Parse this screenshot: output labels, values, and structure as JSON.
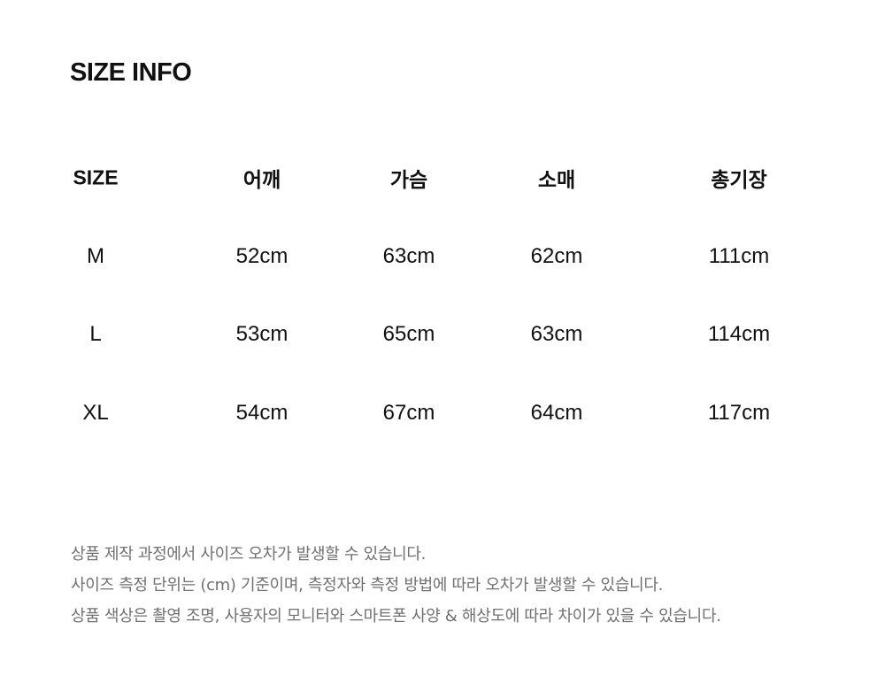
{
  "title": "SIZE INFO",
  "table": {
    "headers": [
      "SIZE",
      "어깨",
      "가슴",
      "소매",
      "총기장"
    ],
    "rows": [
      [
        "M",
        "52cm",
        "63cm",
        "62cm",
        "111cm"
      ],
      [
        "L",
        "53cm",
        "65cm",
        "63cm",
        "114cm"
      ],
      [
        "XL",
        "54cm",
        "67cm",
        "64cm",
        "117cm"
      ]
    ]
  },
  "notes": [
    "상품 제작 과정에서 사이즈 오차가 발생할 수 있습니다.",
    "사이즈 측정 단위는 (cm) 기준이며, 측정자와 측정 방법에 따라 오차가 발생할 수 있습니다.",
    "상품 색상은 촬영 조명, 사용자의 모니터와 스마트폰 사양 & 해상도에 따라 차이가 있을 수 있습니다."
  ]
}
